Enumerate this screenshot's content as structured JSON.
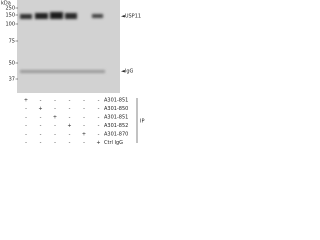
{
  "blot": {
    "mw_unit": "kDa",
    "markers": [
      "250",
      "150",
      "100",
      "75",
      "50",
      "37"
    ],
    "band_label": "◄USP11",
    "igg_label": "◄IgG",
    "group_label": "IP",
    "rows": [
      {
        "label": "A301-851",
        "cells": [
          "+",
          "-",
          "-",
          "-",
          "-",
          "-"
        ]
      },
      {
        "label": "A301-850",
        "cells": [
          "-",
          "+",
          "-",
          "-",
          "-",
          "-"
        ]
      },
      {
        "label": "A301-851",
        "cells": [
          "-",
          "-",
          "+",
          "-",
          "-",
          "-"
        ]
      },
      {
        "label": "A301-852",
        "cells": [
          "-",
          "-",
          "-",
          "+",
          "-",
          "-"
        ]
      },
      {
        "label": "A301-870",
        "cells": [
          "-",
          "-",
          "-",
          "-",
          "+",
          "-"
        ]
      },
      {
        "label": "Ctrl IgG",
        "cells": [
          "-",
          "-",
          "-",
          "-",
          "-",
          "+"
        ]
      }
    ]
  }
}
